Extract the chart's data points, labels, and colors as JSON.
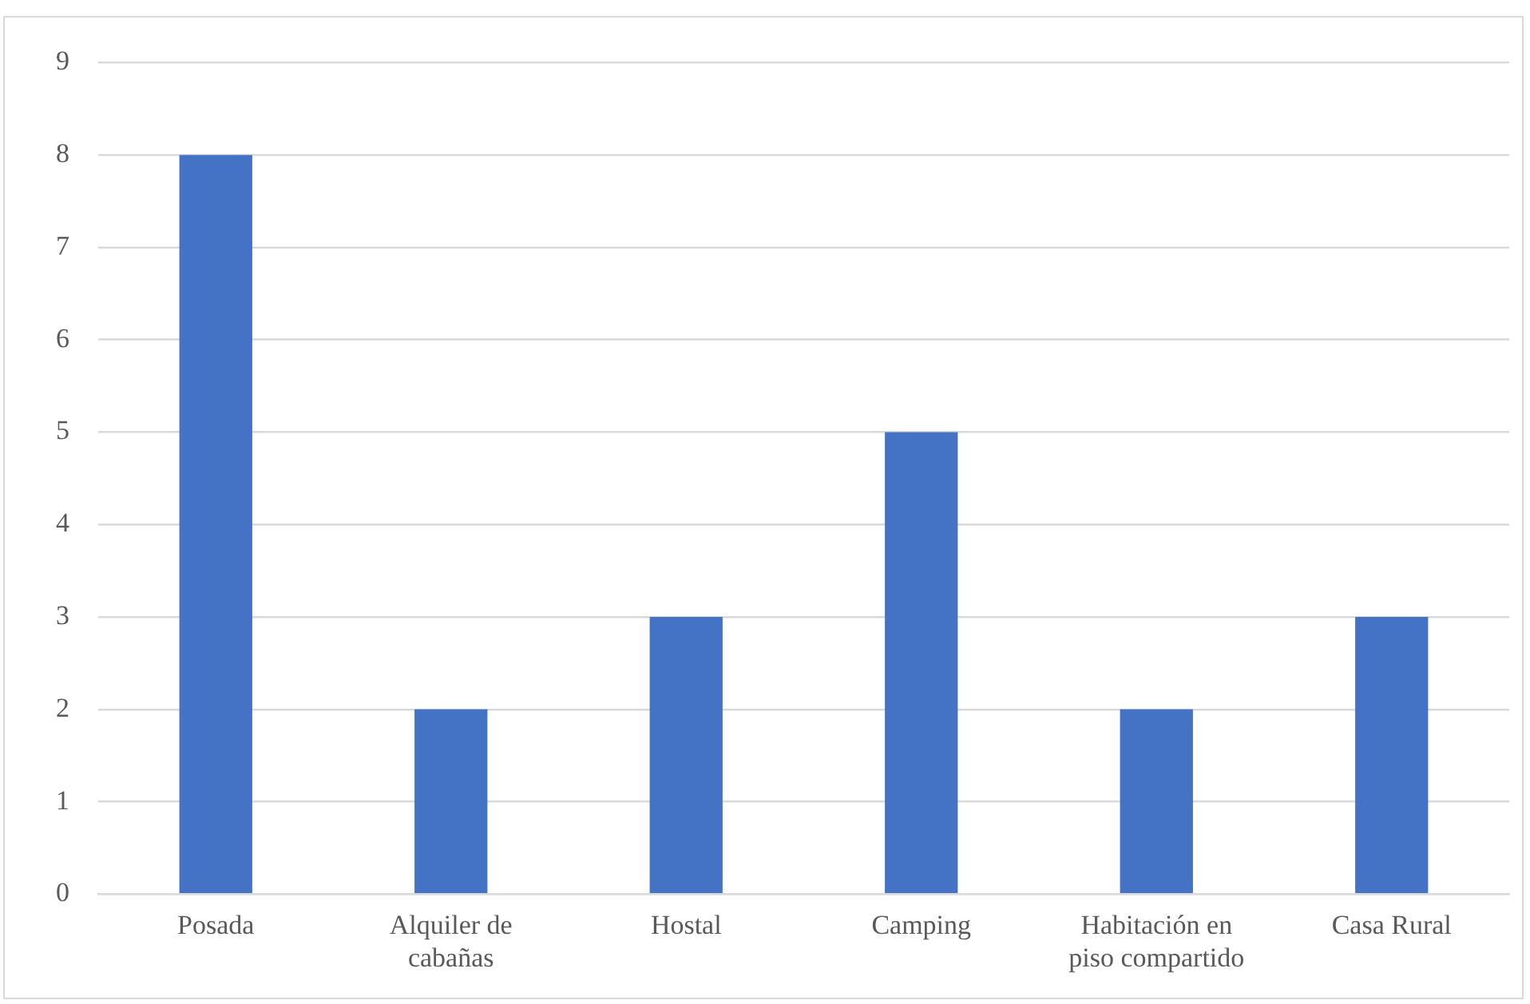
{
  "chart_data": {
    "type": "bar",
    "categories": [
      "Posada",
      "Alquiler de cabañas",
      "Hostal",
      "Camping",
      "Habitación en piso compartido",
      "Casa Rural"
    ],
    "values": [
      8,
      2,
      3,
      5,
      2,
      3
    ],
    "color": "#4472c4",
    "ylim": [
      0,
      9
    ],
    "yticks": [
      0,
      1,
      2,
      3,
      4,
      5,
      6,
      7,
      8,
      9
    ],
    "grid": "y",
    "legend": false
  }
}
